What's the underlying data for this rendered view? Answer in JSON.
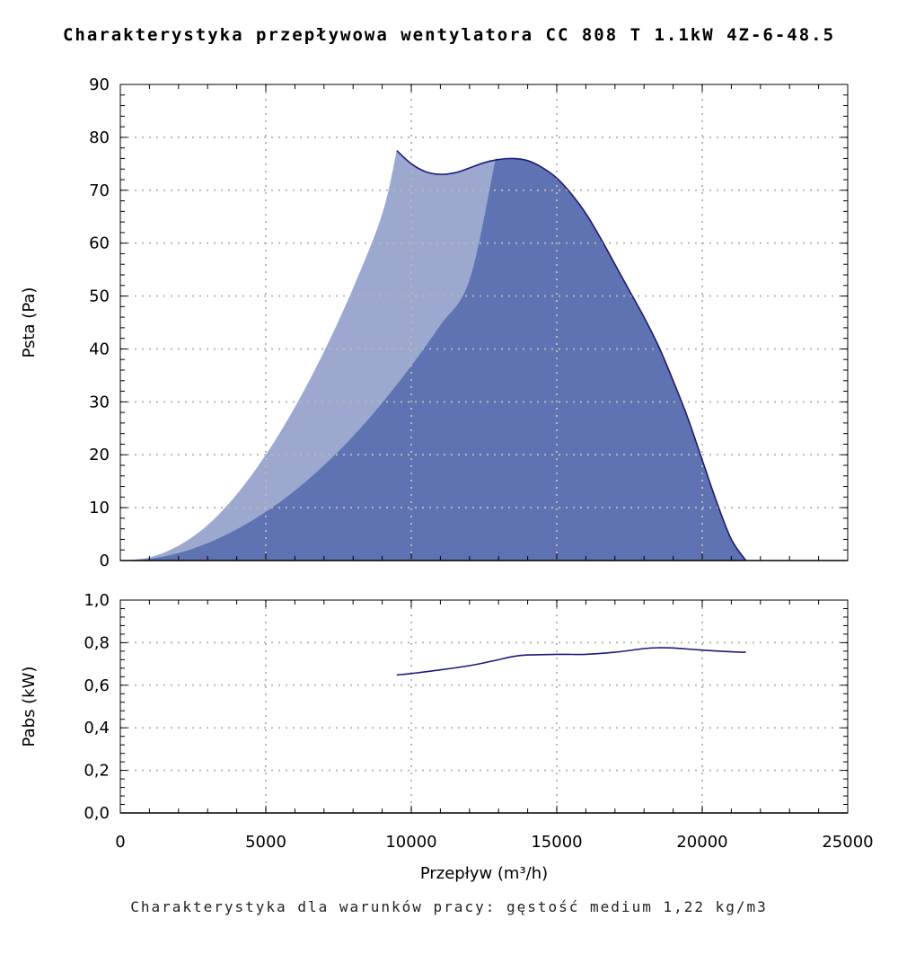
{
  "title": "Charakterystyka przepływowa wentylatora CC 808 T 1.1kW 4Z-6-48.5",
  "footer": "Charakterystyka dla warunków pracy: gęstość medium 1,22 kg/m3",
  "colors": {
    "curve": "#1a1a80",
    "dark_fill": "#5f72b2",
    "light_fill": "#9ca8ce",
    "grid": "#b8b8b8"
  },
  "chart_data": [
    {
      "type": "area",
      "ylabel": "Psta (Pa)",
      "xlim": [
        0,
        25000
      ],
      "ylim": [
        0,
        90
      ],
      "grid": true,
      "y_ticks": [
        "0",
        "10",
        "20",
        "30",
        "40",
        "50",
        "60",
        "70",
        "80",
        "90"
      ],
      "series": [
        {
          "role": "curve-envelope",
          "x": [
            9500,
            10000,
            10500,
            11000,
            11500,
            12000,
            12500,
            13000,
            13500,
            14000,
            14500,
            15000,
            15500,
            16000,
            16500,
            17000,
            17500,
            18000,
            18500,
            19000,
            19500,
            20000,
            20500,
            21000,
            21500
          ],
          "y": [
            77.5,
            75.0,
            73.5,
            73.0,
            73.3,
            74.2,
            75.2,
            75.8,
            76.0,
            75.6,
            74.3,
            72.3,
            69.3,
            65.6,
            61.0,
            56.0,
            51.0,
            46.0,
            40.5,
            34.0,
            27.0,
            19.0,
            11.0,
            4.0,
            0.0
          ]
        },
        {
          "role": "light-region-left-edge",
          "x": [
            0,
            1000,
            2000,
            3000,
            4000,
            5000,
            6000,
            7000,
            8000,
            9000,
            9500
          ],
          "y": [
            0,
            0.6,
            2.8,
            6.7,
            12.5,
            20.0,
            29.0,
            39.5,
            51.5,
            65.5,
            77.5
          ]
        },
        {
          "role": "dark-region-left-edge",
          "x": [
            0,
            1000,
            2000,
            3000,
            4000,
            5000,
            6000,
            7000,
            8000,
            9000,
            10000,
            11000,
            12000,
            12900
          ],
          "y": [
            0,
            0.3,
            1.4,
            3.3,
            5.9,
            9.2,
            13.2,
            18.0,
            23.5,
            29.8,
            36.8,
            44.5,
            53.0,
            76.0
          ]
        }
      ]
    },
    {
      "type": "line",
      "xlabel": "Przepływ (m³/h)",
      "ylabel": "Pabs (kW)",
      "xlim": [
        0,
        25000
      ],
      "ylim": [
        0,
        1.0
      ],
      "grid": true,
      "x_ticks": [
        "0",
        "5000",
        "10000",
        "15000",
        "20000",
        "25000"
      ],
      "y_ticks": [
        "0,0",
        "0,2",
        "0,4",
        "0,6",
        "0,8",
        "1,0"
      ],
      "series": [
        {
          "x": [
            9500,
            10000,
            11000,
            12000,
            12500,
            13000,
            13500,
            14000,
            15000,
            16000,
            17000,
            18000,
            18500,
            19000,
            20000,
            21000,
            21500
          ],
          "y": [
            0.648,
            0.655,
            0.672,
            0.692,
            0.705,
            0.72,
            0.735,
            0.742,
            0.745,
            0.745,
            0.755,
            0.772,
            0.776,
            0.775,
            0.765,
            0.757,
            0.755
          ]
        }
      ]
    }
  ]
}
